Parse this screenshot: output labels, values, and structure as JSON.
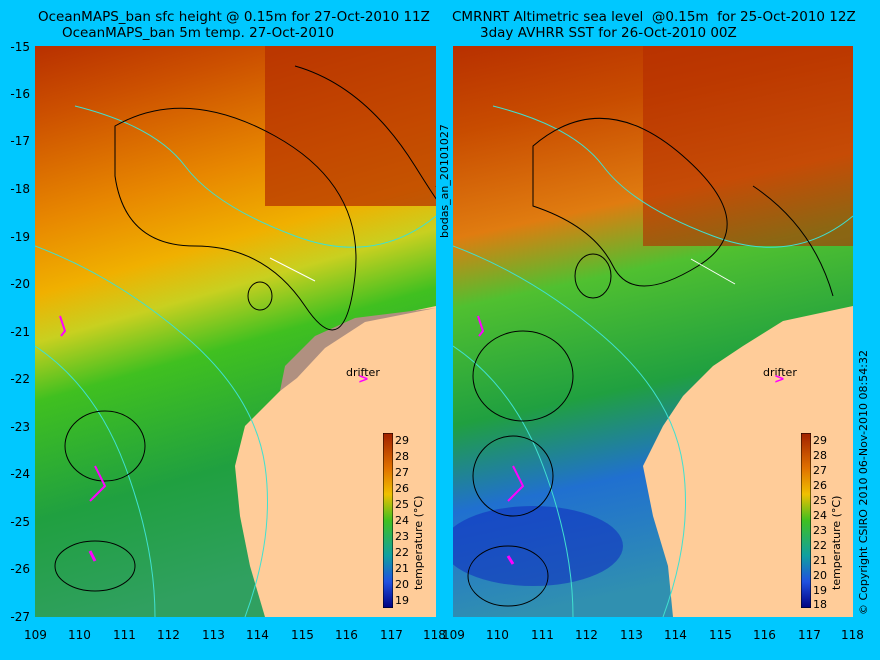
{
  "left_panel": {
    "title_line1": "OceanMAPS_ban sfc height @ 0.15m for 27-Oct-2010 11Z",
    "title_line2": "OceanMAPS_ban 5m temp. 27-Oct-2010",
    "colorbar_label": "temperature (°C)",
    "colorbar_ticks": [
      "29",
      "28",
      "27",
      "26",
      "25",
      "24",
      "23",
      "22",
      "21",
      "20",
      "19"
    ],
    "drifter_label": "drifter",
    "drifter_arrow": ">"
  },
  "right_panel": {
    "title_line1": "CMRNRT Altimetric sea level  @0.15m  for 25-Oct-2010 12Z",
    "title_line2": "3day AVHRR SST for 26-Oct-2010 00Z",
    "colorbar_label": "temperature (°C)",
    "colorbar_ticks": [
      "29",
      "28",
      "27",
      "26",
      "25",
      "24",
      "23",
      "22",
      "21",
      "20",
      "19",
      "18"
    ],
    "drifter_label": "drifter",
    "drifter_arrow": ">"
  },
  "y_axis_ticks": [
    "-15",
    "-16",
    "-17",
    "-18",
    "-19",
    "-20",
    "-21",
    "-22",
    "-23",
    "-24",
    "-25",
    "-26",
    "-27"
  ],
  "x_axis_ticks": [
    "109",
    "110",
    "111",
    "112",
    "113",
    "114",
    "115",
    "116",
    "117",
    "118"
  ],
  "center_label": "bodas_an_20101027",
  "copyright": "© Copyright CSIRO 2010  06-Nov-2010 08:54:32",
  "colors": {
    "background": "#00c8ff",
    "land": "#ffcc99",
    "shelf": "#b09080"
  }
}
